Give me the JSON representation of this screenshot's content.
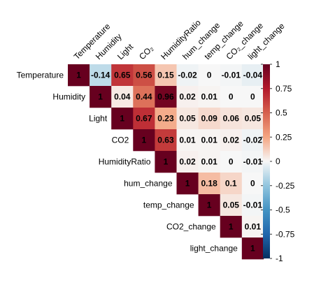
{
  "chart_data": {
    "type": "heatmap",
    "subtype": "upper-triangle correlation matrix",
    "variables": [
      "Temperature",
      "Humidity",
      "Light",
      "CO2",
      "HumidityRatio",
      "hum_change",
      "temp_change",
      "CO2_change",
      "light_change"
    ],
    "column_labels": [
      "Temperature",
      "Humidity",
      "Light",
      "CO₂",
      "HumidityRatio",
      "hum_change",
      "temp_change",
      "CO₂_change",
      "light_change"
    ],
    "matrix": [
      [
        1,
        -0.14,
        0.65,
        0.56,
        0.15,
        -0.02,
        0,
        -0.01,
        -0.04
      ],
      [
        null,
        1,
        0.04,
        0.44,
        0.96,
        0.02,
        0.01,
        0,
        0
      ],
      [
        null,
        null,
        1,
        0.67,
        0.23,
        0.05,
        0.09,
        0.06,
        0.05
      ],
      [
        null,
        null,
        null,
        1,
        0.63,
        0.01,
        0.01,
        0.02,
        -0.02
      ],
      [
        null,
        null,
        null,
        null,
        1,
        0.02,
        0.01,
        0,
        -0.01
      ],
      [
        null,
        null,
        null,
        null,
        null,
        1,
        0.18,
        0.1,
        0
      ],
      [
        null,
        null,
        null,
        null,
        null,
        null,
        1,
        0.05,
        -0.01
      ],
      [
        null,
        null,
        null,
        null,
        null,
        null,
        null,
        1,
        0.01
      ],
      [
        null,
        null,
        null,
        null,
        null,
        null,
        null,
        null,
        1
      ]
    ],
    "display_labels": [
      [
        "1",
        "-0.14",
        "0.65",
        "0.56",
        "0.15",
        "-0.02",
        "0",
        "-0.01",
        "-0.04"
      ],
      [
        null,
        "1",
        "0.04",
        "0.44",
        "0.96",
        "0.02",
        "0.01",
        "0",
        "0"
      ],
      [
        null,
        null,
        "1",
        "0.67",
        "0.23",
        "0.05",
        "0.09",
        "0.06",
        "0.05"
      ],
      [
        null,
        null,
        null,
        "1",
        "0.63",
        "0.01",
        "0.01",
        "0.02",
        "-0.02"
      ],
      [
        null,
        null,
        null,
        null,
        "1",
        "0.02",
        "0.01",
        "0",
        "-0.01"
      ],
      [
        null,
        null,
        null,
        null,
        null,
        "1",
        "0.18",
        "0.1",
        "0"
      ],
      [
        null,
        null,
        null,
        null,
        null,
        null,
        "1",
        "0.05",
        "-0.01"
      ],
      [
        null,
        null,
        null,
        null,
        null,
        null,
        null,
        "1",
        "0.01"
      ],
      [
        null,
        null,
        null,
        null,
        null,
        null,
        null,
        null,
        "1"
      ]
    ],
    "color_scale": {
      "range": [
        -1,
        1
      ],
      "ticks": [
        1,
        0.75,
        0.5,
        0.25,
        0,
        -0.25,
        -0.5,
        -0.75,
        -1
      ],
      "tick_labels": [
        "1",
        "0.75",
        "0.5",
        "0.25",
        "0",
        "-0.25",
        "-0.5",
        "-0.75",
        "-1"
      ],
      "stops": [
        {
          "v": -1,
          "color": "#053061"
        },
        {
          "v": -0.75,
          "color": "#2166AC"
        },
        {
          "v": -0.5,
          "color": "#4393C3"
        },
        {
          "v": -0.25,
          "color": "#92C5DE"
        },
        {
          "v": 0,
          "color": "#F7F7F7"
        },
        {
          "v": 0.25,
          "color": "#F4A582"
        },
        {
          "v": 0.5,
          "color": "#D6604D"
        },
        {
          "v": 0.75,
          "color": "#B2182B"
        },
        {
          "v": 1,
          "color": "#67001F"
        }
      ]
    },
    "legend_placement": "right"
  }
}
